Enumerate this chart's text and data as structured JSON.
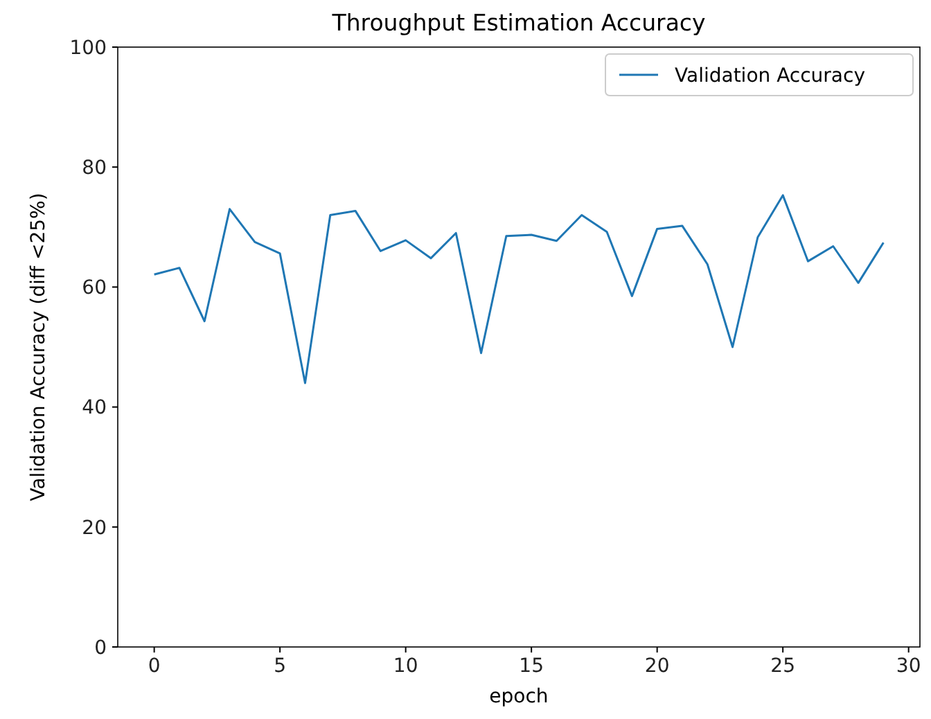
{
  "chart_data": {
    "type": "line",
    "title": "Throughput Estimation Accuracy",
    "xlabel": "epoch",
    "ylabel": "Validation Accuracy (diff <25%)",
    "x": [
      0,
      1,
      2,
      3,
      4,
      5,
      6,
      7,
      8,
      9,
      10,
      11,
      12,
      13,
      14,
      15,
      16,
      17,
      18,
      19,
      20,
      21,
      22,
      23,
      24,
      25,
      26,
      27,
      28,
      29
    ],
    "series": [
      {
        "name": "Validation Accuracy",
        "color": "#1f77b4",
        "values": [
          62.1,
          63.2,
          54.3,
          73,
          67.5,
          65.6,
          44,
          72,
          72.7,
          66,
          67.8,
          64.8,
          69,
          49,
          68.5,
          68.7,
          67.7,
          72,
          69.2,
          58.5,
          69.7,
          70.2,
          63.8,
          50,
          68.3,
          75.3,
          64.3,
          66.8,
          60.7,
          67.4
        ]
      }
    ],
    "xlim": [
      -1.45,
      30.45
    ],
    "xticks": [
      0,
      5,
      10,
      15,
      20,
      25,
      30
    ],
    "ylim": [
      0,
      100
    ],
    "yticks": [
      0,
      20,
      40,
      60,
      80,
      100
    ],
    "grid": false,
    "legend": "top right",
    "marker": "none",
    "line_style": "solid"
  }
}
